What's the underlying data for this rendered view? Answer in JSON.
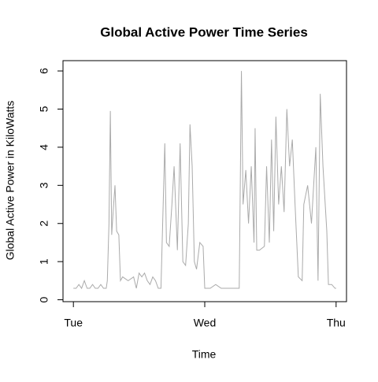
{
  "chart_data": {
    "type": "line",
    "title": "Global Active Power Time Series",
    "x_label": "Time",
    "y_label": "Global Active Power in KiloWatts",
    "x": [
      0,
      0.5,
      1,
      1.5,
      2,
      2.5,
      3,
      3.5,
      4,
      4.5,
      5,
      5.5,
      6,
      6.2,
      6.5,
      6.75,
      7,
      7.3,
      7.6,
      7.9,
      8.3,
      8.6,
      9,
      10,
      11,
      11.5,
      12,
      12.5,
      13,
      13.5,
      14,
      14.5,
      15,
      15.5,
      16,
      16.2,
      16.7,
      17,
      17.5,
      18,
      18.4,
      19,
      19.5,
      20,
      20.5,
      21,
      21.3,
      21.7,
      22.1,
      22.5,
      23.1,
      23.7,
      24,
      25,
      26,
      27,
      28,
      29,
      30,
      30.3,
      30.7,
      31,
      31.5,
      32,
      32.5,
      33,
      33.2,
      33.5,
      34,
      34.9,
      35.3,
      35.8,
      36.2,
      36.6,
      37,
      37.5,
      38,
      38.5,
      39,
      39.5,
      40,
      40.5,
      41.1,
      41.8,
      42.1,
      42.8,
      43.5,
      44.3,
      44.7,
      45.1,
      45.6,
      46.3,
      46.6,
      47.2,
      47.8,
      48
    ],
    "series": [
      {
        "name": "Global Active Power",
        "color": "#aaaaaa",
        "values": [
          0.3,
          0.3,
          0.4,
          0.3,
          0.5,
          0.3,
          0.3,
          0.4,
          0.3,
          0.3,
          0.4,
          0.3,
          0.3,
          0.5,
          2.0,
          4.95,
          1.7,
          2.4,
          3.0,
          1.8,
          1.7,
          0.5,
          0.6,
          0.5,
          0.6,
          0.3,
          0.7,
          0.6,
          0.7,
          0.5,
          0.4,
          0.6,
          0.5,
          0.3,
          0.3,
          1.4,
          4.1,
          1.5,
          1.4,
          2.5,
          3.5,
          1.3,
          4.1,
          1.0,
          0.9,
          2.0,
          4.6,
          3.5,
          1.0,
          0.8,
          1.5,
          1.4,
          0.3,
          0.3,
          0.4,
          0.3,
          0.3,
          0.3,
          0.3,
          0.3,
          6.0,
          2.5,
          3.4,
          2.0,
          3.5,
          1.5,
          4.5,
          1.3,
          1.3,
          1.4,
          3.5,
          1.5,
          4.2,
          1.8,
          4.8,
          2.5,
          3.5,
          2.3,
          5.0,
          3.5,
          4.2,
          2.5,
          0.6,
          0.5,
          2.5,
          3.0,
          2.0,
          4.0,
          0.5,
          5.4,
          3.5,
          1.8,
          0.4,
          0.4,
          0.3,
          0.3
        ]
      }
    ],
    "xlim": [
      -1.9,
      49.9
    ],
    "xticks": [
      {
        "value": 0,
        "label": "Tue"
      },
      {
        "value": 24,
        "label": "Wed"
      },
      {
        "value": 48,
        "label": "Thu"
      }
    ],
    "ylim": [
      -0.05,
      6.27
    ],
    "yticks": [
      0,
      1,
      2,
      3,
      4,
      5,
      6
    ]
  }
}
